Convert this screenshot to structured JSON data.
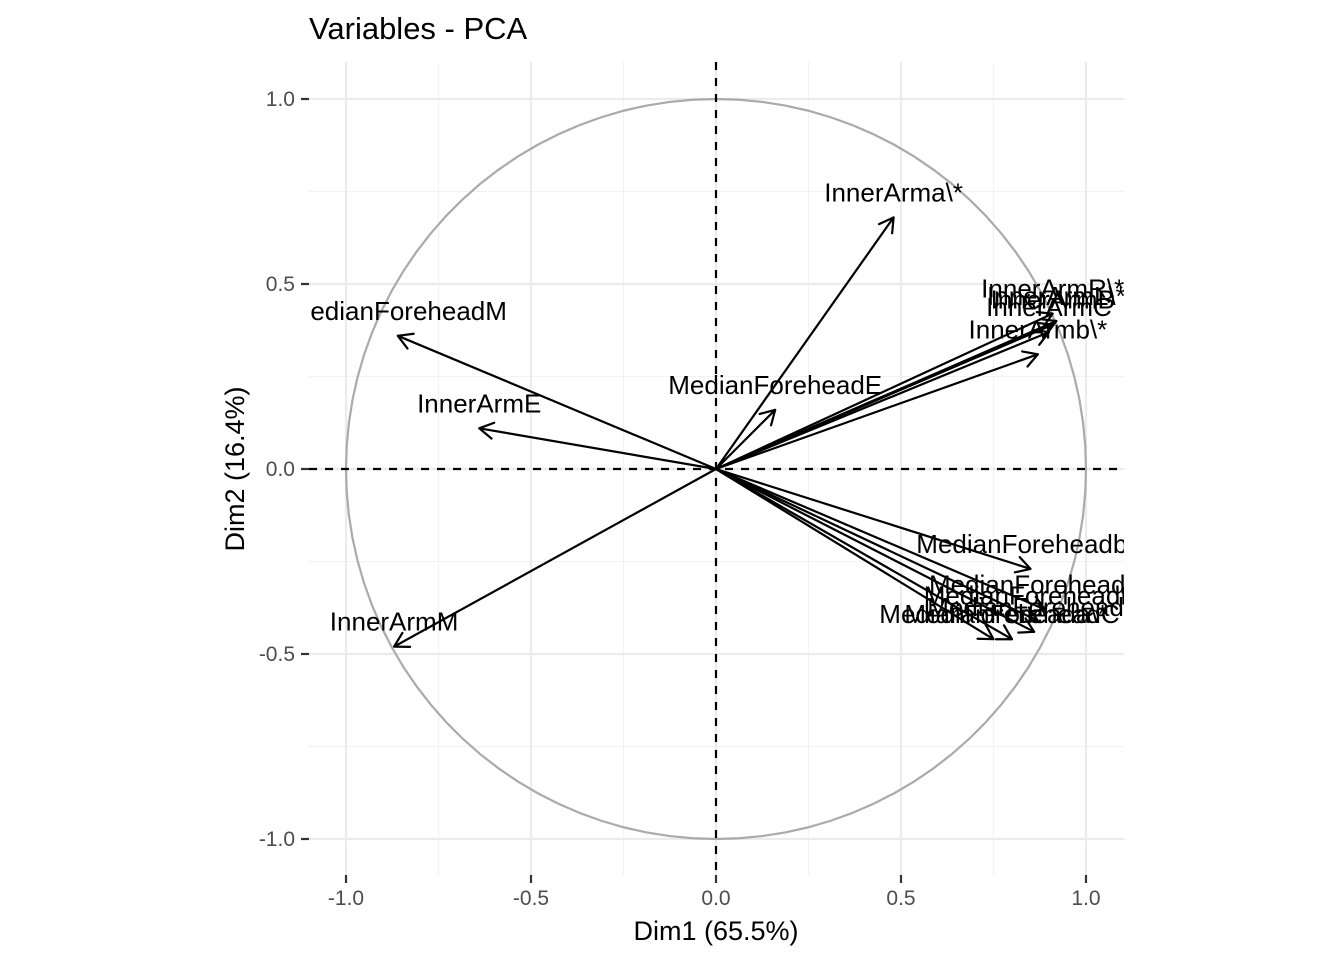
{
  "chart_data": {
    "type": "scatter",
    "subtype": "pca-variable-correlation-circle",
    "title": "Variables - PCA",
    "xlabel": "Dim1 (65.5%)",
    "ylabel": "Dim2 (16.4%)",
    "xlim": [
      -1.1,
      1.1
    ],
    "ylim": [
      -1.1,
      1.1
    ],
    "xticks": [
      "-1.0",
      "-0.5",
      "0.0",
      "0.5",
      "1.0"
    ],
    "yticks": [
      "-1.0",
      "-0.5",
      "0.0",
      "0.5",
      "1.0"
    ],
    "xtick_values": [
      -1.0,
      -0.5,
      0.0,
      0.5,
      1.0
    ],
    "ytick_values": [
      -1.0,
      -0.5,
      0.0,
      0.5,
      1.0
    ],
    "grid": true,
    "unit_circle": true,
    "zero_reference_lines": true,
    "variables": [
      {
        "name": "InnerArma\\*",
        "x": 0.48,
        "y": 0.68
      },
      {
        "name": "InnerArmR\\*",
        "x": 0.91,
        "y": 0.42
      },
      {
        "name": "InnerArmL\\*",
        "x": 0.92,
        "y": 0.4
      },
      {
        "name": "InnerArmB",
        "x": 0.91,
        "y": 0.39
      },
      {
        "name": "InnerArmC",
        "x": 0.9,
        "y": 0.37
      },
      {
        "name": "InnerArmb\\*",
        "x": 0.87,
        "y": 0.31
      },
      {
        "name": "MedianForeheadE",
        "x": 0.16,
        "y": 0.16
      },
      {
        "name": "MedianForeheadM",
        "x": -0.86,
        "y": 0.36
      },
      {
        "name": "InnerArmE",
        "x": -0.64,
        "y": 0.11
      },
      {
        "name": "InnerArmM",
        "x": -0.87,
        "y": -0.48
      },
      {
        "name": "MedianForeheadb\\*",
        "x": 0.85,
        "y": -0.27
      },
      {
        "name": "MedianForeheadR\\*",
        "x": 0.89,
        "y": -0.38
      },
      {
        "name": "MedianForeheadL\\*",
        "x": 0.87,
        "y": -0.41
      },
      {
        "name": "MedianForeheadB",
        "x": 0.86,
        "y": -0.44
      },
      {
        "name": "MedianForeheadC",
        "x": 0.8,
        "y": -0.46
      },
      {
        "name": "MedianForeheada\\*",
        "x": 0.75,
        "y": -0.46
      }
    ]
  }
}
